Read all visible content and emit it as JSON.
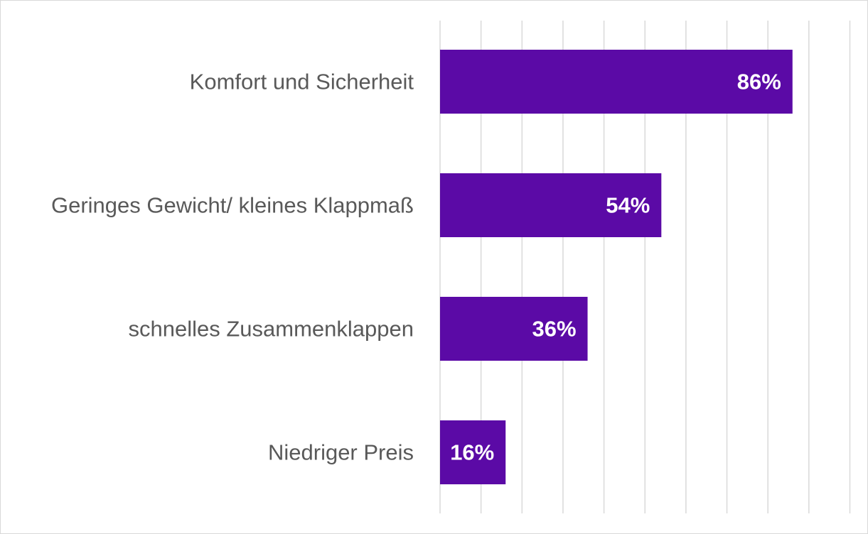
{
  "chart_data": {
    "type": "bar",
    "orientation": "horizontal",
    "title": "",
    "xlabel": "",
    "ylabel": "",
    "categories": [
      "Komfort und Sicherheit",
      "Geringes Gewicht/ kleines Klappmaß",
      "schnelles Zusammenklappen",
      "Niedriger Preis"
    ],
    "values": [
      86,
      54,
      36,
      16
    ],
    "data_labels": [
      "86%",
      "54%",
      "36%",
      "16%"
    ],
    "xlim": [
      0,
      100
    ],
    "grid_step": 10,
    "grid": true,
    "legend": "none",
    "colors": {
      "bar": "#5b0aa6",
      "label_text": "#595959",
      "data_label_text": "#ffffff",
      "gridline": "#d9d9d9"
    }
  }
}
